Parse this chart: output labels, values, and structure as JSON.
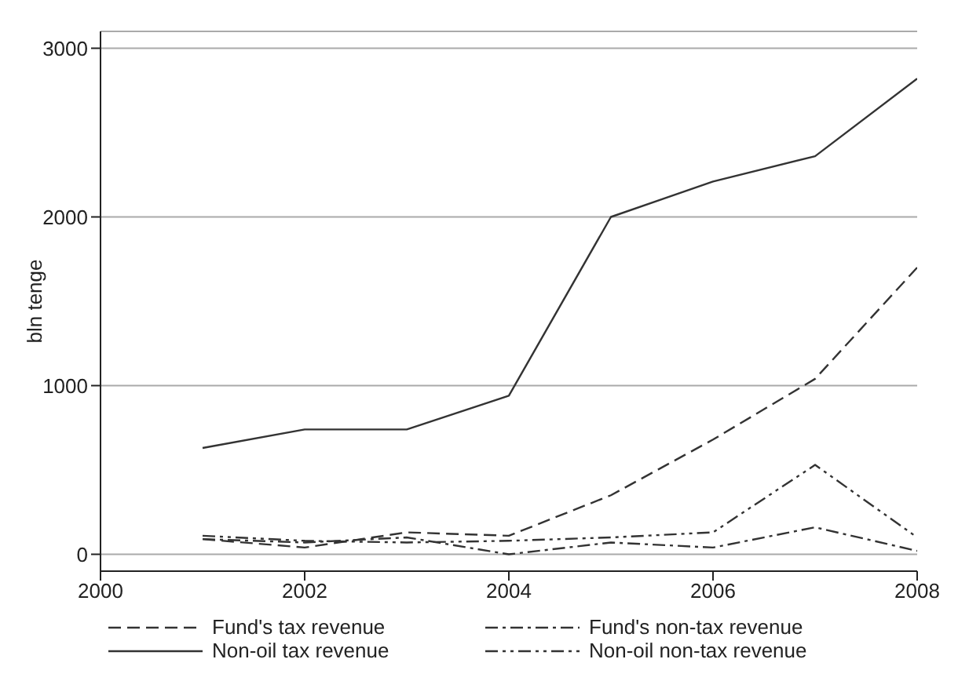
{
  "chart_data": {
    "type": "line",
    "ylabel": "bln tenge",
    "x": [
      2001,
      2002,
      2003,
      2004,
      2005,
      2006,
      2007,
      2008
    ],
    "xlim": [
      2000,
      2008
    ],
    "xticks": [
      2000,
      2002,
      2004,
      2006,
      2008
    ],
    "ylim": [
      -100,
      3100
    ],
    "yticks": [
      0,
      1000,
      2000,
      3000
    ],
    "grid": "y",
    "legend": "bottom",
    "marker": "none",
    "series": [
      {
        "name": "Fund's tax revenue",
        "color": "#333333",
        "line_style": "dashed",
        "values": [
          90,
          40,
          130,
          110,
          350,
          680,
          1040,
          1700
        ]
      },
      {
        "name": "Fund's non-tax revenue",
        "color": "#333333",
        "line_style": "dashdot",
        "values": [
          90,
          70,
          100,
          0,
          70,
          40,
          160,
          20
        ]
      },
      {
        "name": "Non-oil tax revenue",
        "color": "#333333",
        "line_style": "solid",
        "values": [
          630,
          740,
          740,
          940,
          2000,
          2210,
          2360,
          2820
        ]
      },
      {
        "name": "Non-oil non-tax revenue",
        "color": "#333333",
        "line_style": "dashdotdot",
        "values": [
          110,
          80,
          70,
          80,
          100,
          130,
          530,
          100
        ]
      }
    ]
  }
}
